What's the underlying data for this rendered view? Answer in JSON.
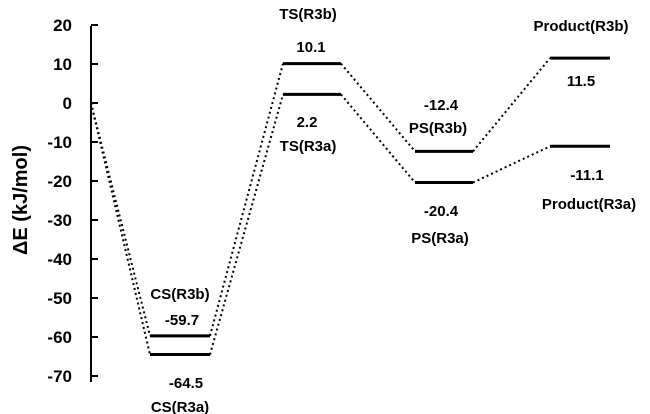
{
  "chart_data": {
    "type": "line",
    "ylabel": "ΔE (kJ/mol)",
    "xlabel": "",
    "title": "",
    "ylim": [
      -70,
      20
    ],
    "yticks": [
      "20",
      "10",
      "0",
      "-10",
      "-20",
      "-30",
      "-40",
      "-50",
      "-60",
      "-70"
    ],
    "grid": false,
    "reference": {
      "value": 0
    },
    "series": [
      {
        "key": "R3b",
        "points": [
          {
            "state": "CS(R3b)",
            "value": -59.7,
            "value_label": "-59.7"
          },
          {
            "state": "TS(R3b)",
            "value": 10.1,
            "value_label": "10.1"
          },
          {
            "state": "PS(R3b)",
            "value": -12.4,
            "value_label": "-12.4"
          },
          {
            "state": "Product(R3b)",
            "value": 11.5,
            "value_label": "11.5"
          }
        ]
      },
      {
        "key": "R3a",
        "points": [
          {
            "state": "CS(R3a)",
            "value": -64.5,
            "value_label": "-64.5"
          },
          {
            "state": "TS(R3a)",
            "value": 2.2,
            "value_label": "2.2"
          },
          {
            "state": "PS(R3a)",
            "value": -20.4,
            "value_label": "-20.4"
          },
          {
            "state": "Product(R3a)",
            "value": -11.1,
            "value_label": "-11.1"
          }
        ]
      }
    ]
  }
}
